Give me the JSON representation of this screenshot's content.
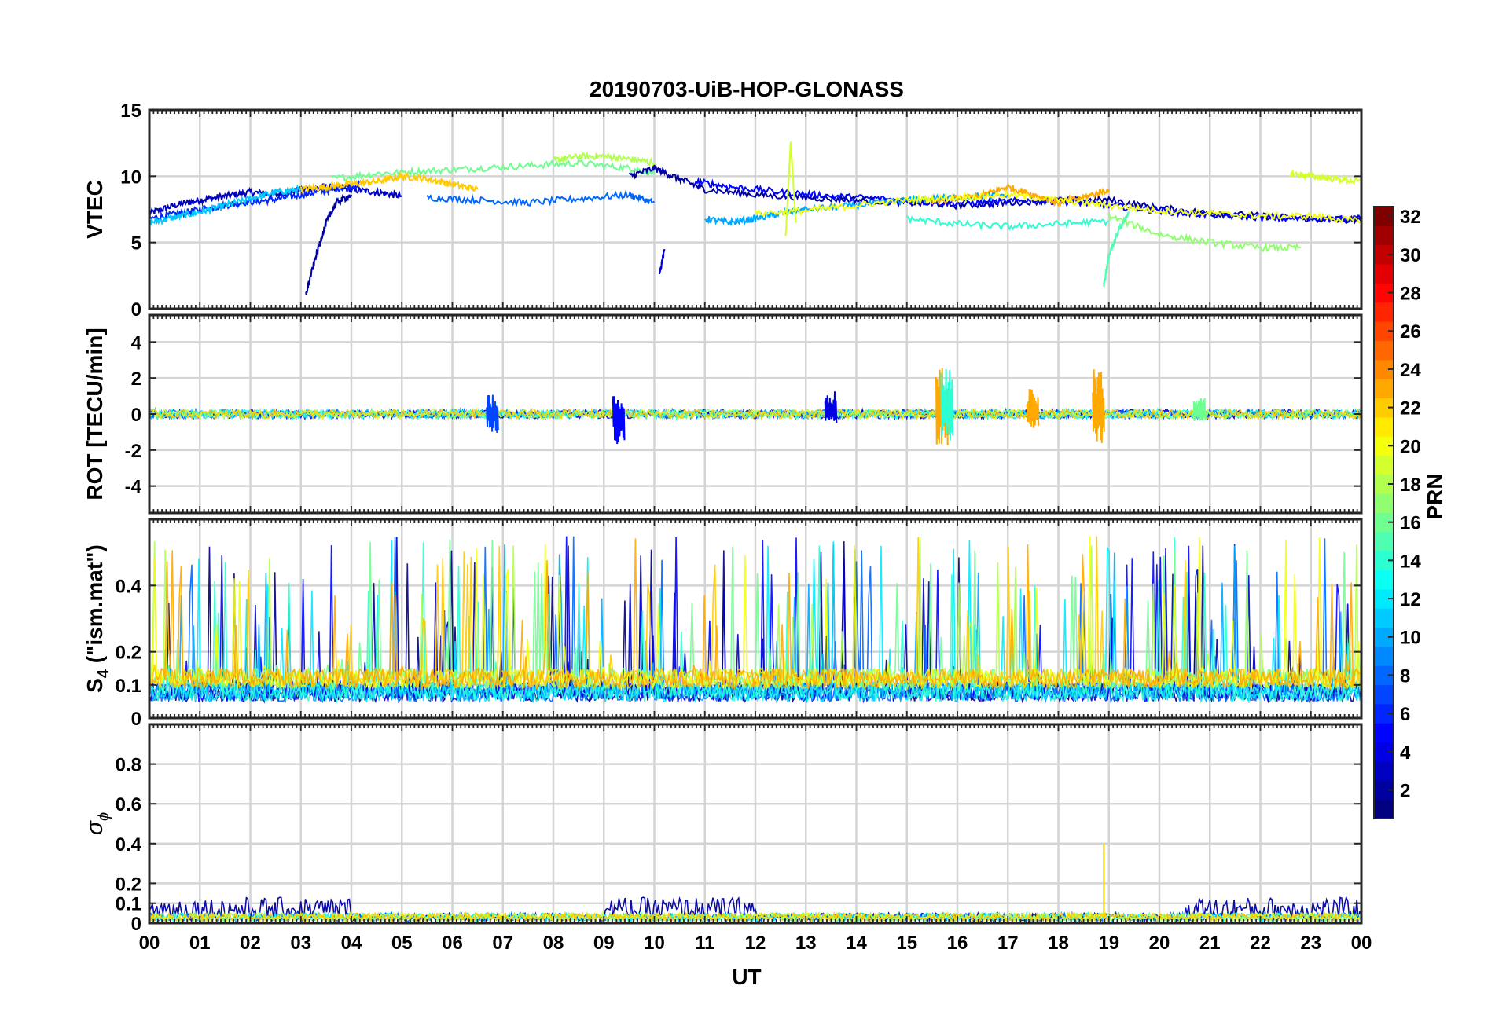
{
  "figure": {
    "title": "20190703-UiB-HOP-GLONASS",
    "x_axis_label": "UT",
    "colorbar_label": "PRN"
  },
  "chart_data": [
    {
      "id": "vtec",
      "type": "line",
      "ylabel": "VTEC",
      "xlim": [
        0,
        24
      ],
      "ylim": [
        0,
        15
      ],
      "yticks": [
        0,
        5,
        10,
        15
      ],
      "grid": true,
      "series_note": "One trace per GLONASS PRN, colored by PRN",
      "series": [
        {
          "prn": 3,
          "x": [
            0.0,
            0.5,
            1.0,
            1.5,
            2.0,
            2.5,
            3.0,
            3.5,
            4.0,
            4.5,
            5.0
          ],
          "y": [
            7.2,
            7.8,
            8.2,
            8.5,
            8.8,
            8.6,
            9.0,
            9.2,
            9.0,
            8.8,
            8.5
          ]
        },
        {
          "prn": 6,
          "x": [
            0.0,
            0.6,
            1.2,
            1.8,
            2.4,
            3.0,
            3.6,
            4.2
          ],
          "y": [
            6.8,
            7.2,
            7.6,
            8.0,
            8.2,
            8.6,
            9.0,
            9.4
          ]
        },
        {
          "prn": 11,
          "x": [
            0.0,
            0.5,
            1.0,
            1.5,
            2.0,
            2.5,
            3.0
          ],
          "y": [
            6.5,
            6.9,
            7.3,
            7.8,
            8.3,
            8.8,
            9.0
          ]
        },
        {
          "prn": 16,
          "x": [
            3.6,
            4.5,
            5.5,
            6.5,
            7.5,
            8.5,
            9.5,
            10.0
          ],
          "y": [
            9.8,
            10.2,
            10.4,
            10.6,
            10.8,
            11.0,
            10.6,
            10.2
          ]
        },
        {
          "prn": 18,
          "x": [
            8.0,
            8.5,
            9.0,
            9.5,
            10.0
          ],
          "y": [
            11.2,
            11.5,
            11.5,
            11.3,
            11.0
          ]
        },
        {
          "prn": 22,
          "x": [
            3.0,
            3.5,
            4.0,
            4.5,
            5.0,
            5.5,
            6.0,
            6.5
          ],
          "y": [
            9.0,
            9.2,
            9.4,
            9.6,
            10.0,
            9.8,
            9.4,
            9.0
          ]
        },
        {
          "prn": 8,
          "x": [
            5.5,
            6.5,
            7.5,
            8.5,
            9.5,
            10.0
          ],
          "y": [
            8.4,
            8.2,
            8.0,
            8.3,
            8.6,
            8.0
          ]
        },
        {
          "prn": 2,
          "x": [
            9.5,
            10.0,
            10.5,
            11.0,
            12.0,
            13.0,
            14.0,
            15.0,
            16.0,
            17.0,
            18.0,
            19.0,
            20.0,
            21.0,
            22.0,
            23.0,
            24.0
          ],
          "y": [
            10.0,
            10.6,
            9.8,
            9.0,
            8.6,
            8.4,
            8.2,
            8.0,
            7.8,
            8.0,
            8.2,
            8.2,
            7.6,
            7.2,
            7.0,
            6.8,
            6.6
          ]
        },
        {
          "prn": 5,
          "x": [
            10.8,
            11.5,
            12.5,
            13.5,
            14.5,
            15.5,
            16.5,
            17.5,
            18.5,
            19.5,
            20.5,
            21.5,
            22.5,
            23.5,
            24.0
          ],
          "y": [
            9.6,
            9.2,
            8.8,
            8.5,
            8.3,
            8.0,
            8.0,
            8.2,
            8.0,
            7.6,
            7.2,
            7.0,
            6.8,
            6.8,
            6.8
          ]
        },
        {
          "prn": 10,
          "x": [
            11.0,
            11.5,
            12.0,
            12.5,
            13.0,
            14.0,
            15.0,
            16.0,
            17.0
          ],
          "y": [
            6.8,
            6.5,
            6.8,
            7.2,
            7.5,
            7.8,
            8.2,
            8.4,
            8.6
          ]
        },
        {
          "prn": 14,
          "x": [
            15.0,
            16.0,
            17.0,
            18.0,
            19.0
          ],
          "y": [
            6.8,
            6.4,
            6.2,
            6.4,
            6.6
          ]
        },
        {
          "prn": 17,
          "x": [
            19.0,
            20.0,
            21.0,
            22.0,
            22.8
          ],
          "y": [
            7.0,
            5.6,
            5.0,
            4.6,
            4.6
          ]
        },
        {
          "prn": 23,
          "x": [
            15.5,
            16.5,
            17.0,
            17.5,
            18.0,
            18.5,
            19.0
          ],
          "y": [
            8.0,
            8.6,
            9.2,
            8.6,
            8.0,
            8.4,
            9.0
          ]
        },
        {
          "prn": 20,
          "x": [
            12.0,
            13.0,
            14.0,
            15.0,
            16.0,
            17.0,
            18.0,
            19.0,
            20.0,
            21.0,
            22.0,
            23.0,
            24.0
          ],
          "y": [
            7.2,
            7.4,
            7.8,
            8.2,
            8.4,
            8.6,
            8.2,
            7.8,
            7.4,
            7.2,
            7.0,
            7.0,
            6.6
          ]
        },
        {
          "prn": 19,
          "x": [
            22.6,
            23.0,
            23.5,
            24.0
          ],
          "y": [
            10.2,
            10.0,
            9.8,
            9.6
          ]
        },
        {
          "prn": 2,
          "x": [
            3.1,
            3.3,
            3.5,
            3.7,
            4.0
          ],
          "y": [
            1.1,
            4.0,
            6.5,
            8.0,
            8.6
          ]
        },
        {
          "prn": 4,
          "x": [
            10.1,
            10.2
          ],
          "y": [
            2.5,
            4.5
          ]
        },
        {
          "prn": 15,
          "x": [
            18.9,
            19.0,
            19.2,
            19.4
          ],
          "y": [
            1.8,
            4.0,
            6.0,
            7.2
          ]
        },
        {
          "prn": 19,
          "x": [
            12.6,
            12.7,
            12.8
          ],
          "y": [
            5.5,
            12.6,
            6.5
          ]
        }
      ]
    },
    {
      "id": "rot",
      "type": "line",
      "ylabel": "ROT [TECU/min]",
      "xlim": [
        0,
        24
      ],
      "ylim": [
        -5.5,
        5.5
      ],
      "yticks": [
        -4,
        -2,
        0,
        2,
        4
      ],
      "grid": true,
      "noise_amplitude": 0.25,
      "spikes": [
        {
          "prn": 7,
          "x": 6.8,
          "lo": -1.2,
          "hi": 1.2
        },
        {
          "prn": 5,
          "x": 9.3,
          "lo": -1.8,
          "hi": 1.0
        },
        {
          "prn": 4,
          "x": 13.5,
          "lo": -0.5,
          "hi": 1.3
        },
        {
          "prn": 23,
          "x": 15.7,
          "lo": -1.8,
          "hi": 2.6
        },
        {
          "prn": 14,
          "x": 15.8,
          "lo": -1.5,
          "hi": 2.6
        },
        {
          "prn": 23,
          "x": 17.5,
          "lo": -0.8,
          "hi": 1.4
        },
        {
          "prn": 23,
          "x": 18.8,
          "lo": -1.8,
          "hi": 2.5
        },
        {
          "prn": 16,
          "x": 20.8,
          "lo": -0.4,
          "hi": 1.2
        }
      ]
    },
    {
      "id": "s4",
      "type": "line",
      "ylabel": "S",
      "ylabel_subscript": "4",
      "ylabel_suffix": " (\"ism.mat\")",
      "xlim": [
        0,
        24
      ],
      "ylim": [
        0,
        0.6
      ],
      "yticks": [
        0,
        0.1,
        0.2,
        0.4
      ],
      "grid": true,
      "baseline_range": [
        0.05,
        0.2
      ],
      "peak_max": 0.6
    },
    {
      "id": "sigma-phi",
      "type": "line",
      "ylabel": "σ",
      "ylabel_subscript": "ϕ",
      "xlim": [
        0,
        24
      ],
      "ylim": [
        0,
        1.0
      ],
      "yticks": [
        0,
        0.1,
        0.2,
        0.4,
        0.6,
        0.8
      ],
      "grid": true,
      "baseline_range": [
        0.0,
        0.2
      ],
      "spike": {
        "prn": 22,
        "x": 18.9,
        "y": 0.4
      }
    }
  ],
  "x_ticks": [
    "00",
    "01",
    "02",
    "03",
    "04",
    "05",
    "06",
    "07",
    "08",
    "09",
    "10",
    "11",
    "12",
    "13",
    "14",
    "15",
    "16",
    "17",
    "18",
    "19",
    "20",
    "21",
    "22",
    "23",
    "00"
  ],
  "colorbar": {
    "min": 1,
    "max": 32,
    "ticks": [
      2,
      4,
      6,
      8,
      10,
      12,
      14,
      16,
      18,
      20,
      22,
      24,
      26,
      28,
      30,
      32
    ],
    "colormap": "jet"
  }
}
